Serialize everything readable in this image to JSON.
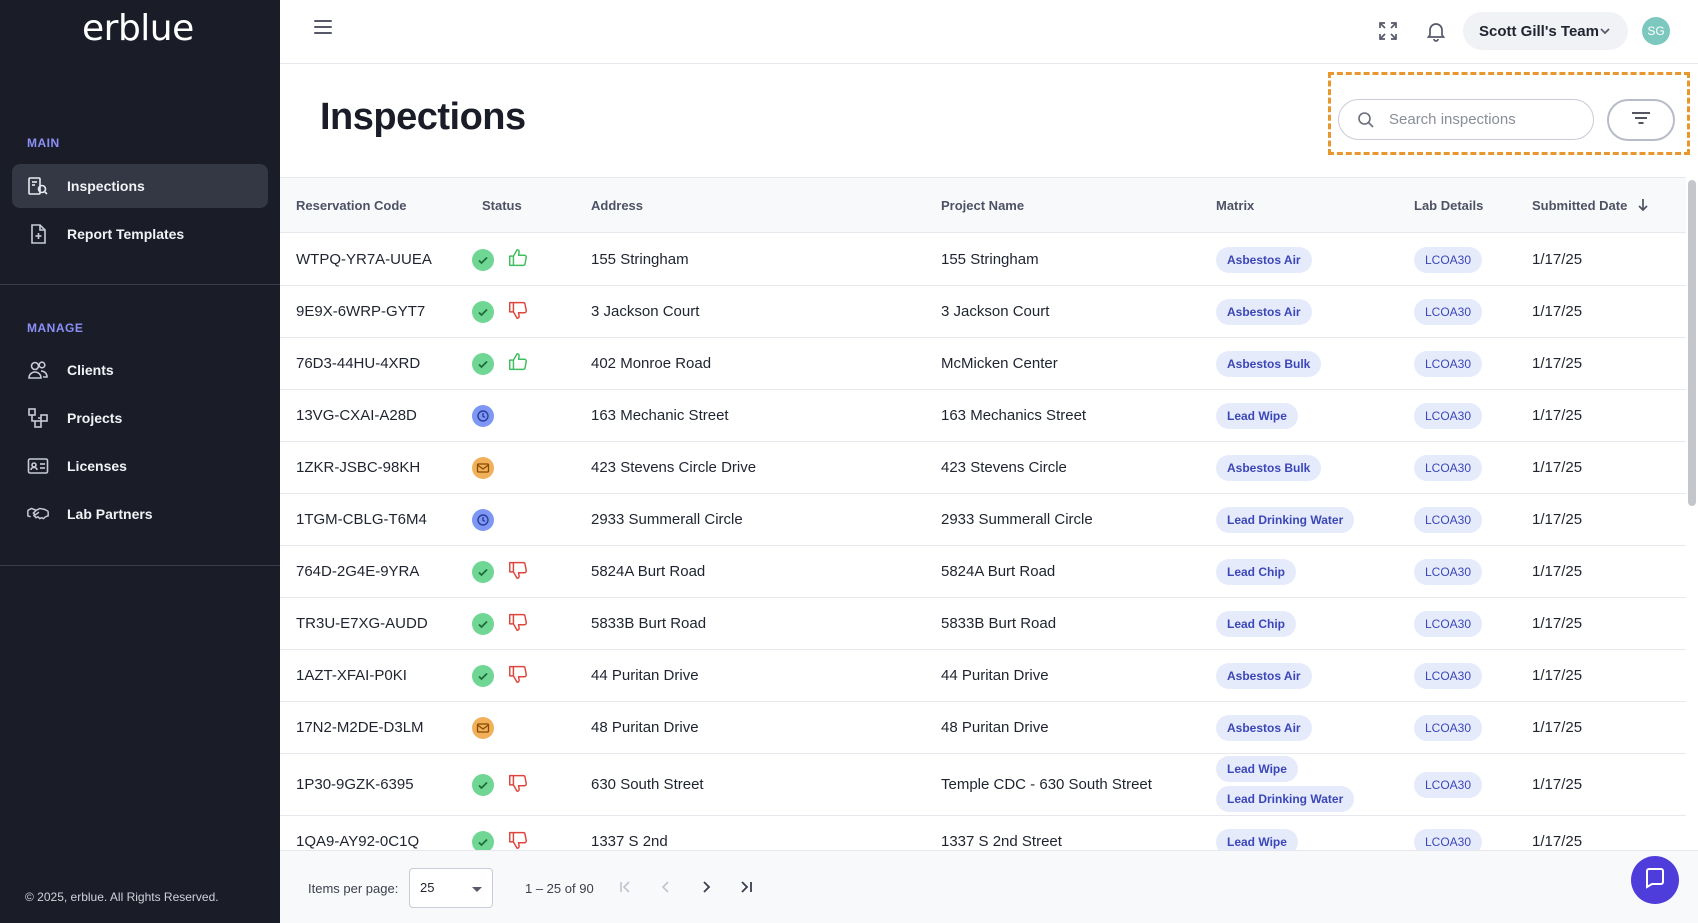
{
  "brand": {
    "logo_text": "erblue"
  },
  "sidebar": {
    "sections": [
      {
        "label": "MAIN",
        "items": [
          {
            "label": "Inspections",
            "icon": "inspections-icon",
            "active": true
          },
          {
            "label": "Report Templates",
            "icon": "report-templates-icon",
            "active": false
          }
        ]
      },
      {
        "label": "MANAGE",
        "items": [
          {
            "label": "Clients",
            "icon": "clients-icon",
            "active": false
          },
          {
            "label": "Projects",
            "icon": "projects-icon",
            "active": false
          },
          {
            "label": "Licenses",
            "icon": "licenses-icon",
            "active": false
          },
          {
            "label": "Lab Partners",
            "icon": "handshake-icon",
            "active": false
          }
        ]
      }
    ],
    "copyright": "© 2025, erblue. All Rights Reserved."
  },
  "topbar": {
    "team_label": "Scott Gill's Team",
    "avatar_initials": "SG"
  },
  "header": {
    "title": "Inspections",
    "search_placeholder": "Search inspections"
  },
  "table": {
    "columns": [
      "Reservation Code",
      "Status",
      "Address",
      "Project Name",
      "Matrix",
      "Lab Details",
      "Submitted Date"
    ],
    "sort_column": "Submitted Date",
    "sort_direction": "descending",
    "rows": [
      {
        "code": "WTPQ-YR7A-UUEA",
        "status": "approved",
        "feedback": "thumbs-up",
        "address": "155 Stringham",
        "project": "155 Stringham",
        "matrix": [
          "Asbestos Air"
        ],
        "lab": "LCOA30",
        "date": "1/17/25"
      },
      {
        "code": "9E9X-6WRP-GYT7",
        "status": "approved",
        "feedback": "thumbs-down",
        "address": "3 Jackson Court",
        "project": "3 Jackson Court",
        "matrix": [
          "Asbestos Air"
        ],
        "lab": "LCOA30",
        "date": "1/17/25"
      },
      {
        "code": "76D3-44HU-4XRD",
        "status": "approved",
        "feedback": "thumbs-up",
        "address": "402 Monroe Road",
        "project": "McMicken Center",
        "matrix": [
          "Asbestos Bulk"
        ],
        "lab": "LCOA30",
        "date": "1/17/25"
      },
      {
        "code": "13VG-CXAI-A28D",
        "status": "pending",
        "feedback": "",
        "address": "163 Mechanic Street",
        "project": "163 Mechanics Street",
        "matrix": [
          "Lead Wipe"
        ],
        "lab": "LCOA30",
        "date": "1/17/25"
      },
      {
        "code": "1ZKR-JSBC-98KH",
        "status": "mail",
        "feedback": "",
        "address": "423 Stevens Circle Drive",
        "project": "423 Stevens Circle",
        "matrix": [
          "Asbestos Bulk"
        ],
        "lab": "LCOA30",
        "date": "1/17/25"
      },
      {
        "code": "1TGM-CBLG-T6M4",
        "status": "pending",
        "feedback": "",
        "address": "2933 Summerall Circle",
        "project": "2933 Summerall Circle",
        "matrix": [
          "Lead Drinking Water"
        ],
        "lab": "LCOA30",
        "date": "1/17/25"
      },
      {
        "code": "764D-2G4E-9YRA",
        "status": "approved",
        "feedback": "thumbs-down",
        "address": "5824A Burt Road",
        "project": "5824A Burt Road",
        "matrix": [
          "Lead Chip"
        ],
        "lab": "LCOA30",
        "date": "1/17/25"
      },
      {
        "code": "TR3U-E7XG-AUDD",
        "status": "approved",
        "feedback": "thumbs-down",
        "address": "5833B Burt Road",
        "project": "5833B Burt Road",
        "matrix": [
          "Lead Chip"
        ],
        "lab": "LCOA30",
        "date": "1/17/25"
      },
      {
        "code": "1AZT-XFAI-P0KI",
        "status": "approved",
        "feedback": "thumbs-down",
        "address": "44 Puritan Drive",
        "project": "44 Puritan Drive",
        "matrix": [
          "Asbestos Air"
        ],
        "lab": "LCOA30",
        "date": "1/17/25"
      },
      {
        "code": "17N2-M2DE-D3LM",
        "status": "mail",
        "feedback": "",
        "address": "48 Puritan Drive",
        "project": "48 Puritan Drive",
        "matrix": [
          "Asbestos Air"
        ],
        "lab": "LCOA30",
        "date": "1/17/25"
      },
      {
        "code": "1P30-9GZK-6395",
        "status": "approved",
        "feedback": "thumbs-down",
        "address": "630 South Street",
        "project": "Temple CDC - 630 South Street",
        "matrix": [
          "Lead Wipe",
          "Lead Drinking Water"
        ],
        "lab": "LCOA30",
        "date": "1/17/25"
      },
      {
        "code": "1QA9-AY92-0C1Q",
        "status": "approved",
        "feedback": "thumbs-down",
        "address": "1337 S 2nd",
        "project": "1337 S 2nd Street",
        "matrix": [
          "Lead Wipe"
        ],
        "lab": "LCOA30",
        "date": "1/17/25"
      }
    ]
  },
  "pagination": {
    "items_per_page_label": "Items per page:",
    "items_per_page_value": "25",
    "range_text": "1 – 25 of 90"
  },
  "colors": {
    "sidebar_bg": "#1a1d27",
    "accent_section": "#8b8ff6",
    "status_approved": "#6fd693",
    "status_pending": "#7e97f2",
    "status_mail": "#f0b15a",
    "thumbs_up": "#3fbf5f",
    "thumbs_down": "#e0453c",
    "chip_bg": "#e6ebfb",
    "chip_text": "#3b47b8",
    "highlight": "#e8962e",
    "fab": "#4f3ddb"
  }
}
